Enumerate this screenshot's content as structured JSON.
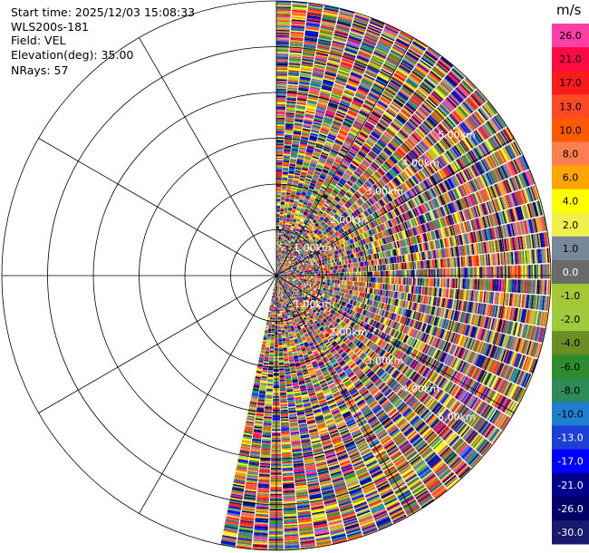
{
  "info": {
    "start_time": "Start time: 2025/12/03 15:08:33",
    "station": "WLS200s-181",
    "field": "Field: VEL",
    "elevation": "Elevation(deg): 35.00",
    "nrays": "NRays: 57"
  },
  "chart_data": {
    "type": "heatmap",
    "projection": "polar",
    "field": "VEL",
    "units": "m/s",
    "elevation_deg": 35.0,
    "n_rays": 57,
    "azimuth_range_deg": [
      0,
      192
    ],
    "max_range_km": 6.0,
    "range_ring_labels": [
      "1.00km",
      "2.00km",
      "3.00km",
      "4.00km",
      "5.00km"
    ],
    "range_rings_km": [
      1,
      2,
      3,
      4,
      5,
      6
    ],
    "azimuth_spokes_deg": [
      0,
      30,
      60,
      90,
      120,
      150,
      180,
      210,
      240,
      270,
      300,
      330
    ],
    "colorbar": {
      "label": "m/s",
      "bins": [
        {
          "label": "26.0",
          "color": "#ff3fa5"
        },
        {
          "label": "21.0",
          "color": "#ff0a43"
        },
        {
          "label": "17.0",
          "color": "#fa1c1c"
        },
        {
          "label": "13.0",
          "color": "#ff4a24"
        },
        {
          "label": "10.0",
          "color": "#ff5a00"
        },
        {
          "label": "8.0",
          "color": "#ff7f50"
        },
        {
          "label": "6.0",
          "color": "#ffa500"
        },
        {
          "label": "4.0",
          "color": "#ffff00"
        },
        {
          "label": "2.0",
          "color": "#f0f04a"
        },
        {
          "label": "1.0",
          "color": "#778899"
        },
        {
          "label": "0.0",
          "color": "#6a6a6a"
        },
        {
          "label": "-1.0",
          "color": "#a5c735"
        },
        {
          "label": "-2.0",
          "color": "#9ec93a"
        },
        {
          "label": "-4.0",
          "color": "#6b8e23"
        },
        {
          "label": "-6.0",
          "color": "#2e8b2e"
        },
        {
          "label": "-8.0",
          "color": "#2e8b57"
        },
        {
          "label": "-10.0",
          "color": "#1e7fd0"
        },
        {
          "label": "-13.0",
          "color": "#1c3fd8"
        },
        {
          "label": "-17.0",
          "color": "#0000ff"
        },
        {
          "label": "-21.0",
          "color": "#00008b"
        },
        {
          "label": "-26.0",
          "color": "#000066"
        },
        {
          "label": "-30.0",
          "color": "#191970"
        }
      ]
    }
  }
}
